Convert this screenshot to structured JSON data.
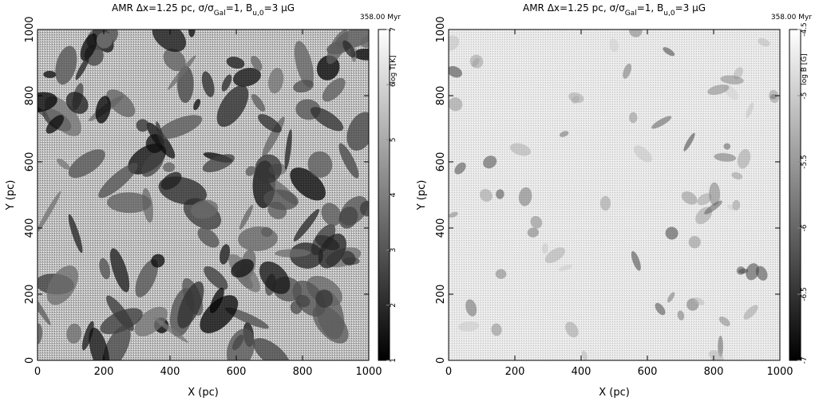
{
  "chart_data": [
    {
      "type": "heatmap",
      "title": [
        "AMR Δx=1.25 pc, σ/σ",
        "Gal",
        "=1, B",
        "u,0",
        "=3 μG"
      ],
      "time_label": "358.00 Myr",
      "xlabel": "X (pc)",
      "ylabel": "Y (pc)",
      "xlim": [
        0,
        1000
      ],
      "ylim": [
        0,
        1000
      ],
      "xticks": [
        0,
        200,
        400,
        600,
        800,
        1000
      ],
      "yticks": [
        0,
        200,
        400,
        600,
        800,
        1000
      ],
      "colormap": "gray",
      "colorbar": {
        "label": "log T[K]",
        "lim": [
          1,
          7
        ],
        "ticks": [
          1,
          2,
          3,
          4,
          5,
          6,
          7
        ]
      }
    },
    {
      "type": "heatmap",
      "title": [
        "AMR Δx=1.25 pc, σ/σ",
        "Gal",
        "=1, B",
        "u,0",
        "=3 μG"
      ],
      "time_label": "358.00 Myr",
      "xlabel": "X (pc)",
      "ylabel": "Y (pc)",
      "xlim": [
        0,
        1000
      ],
      "ylim": [
        0,
        1000
      ],
      "xticks": [
        0,
        200,
        400,
        600,
        800,
        1000
      ],
      "yticks": [
        0,
        200,
        400,
        600,
        800,
        1000
      ],
      "colormap": "gray",
      "colorbar": {
        "label": "log B [G]",
        "lim": [
          -7,
          -4.5
        ],
        "ticks": [
          -7,
          -6.5,
          -6,
          -5.5,
          -5,
          -4.5
        ]
      }
    }
  ]
}
